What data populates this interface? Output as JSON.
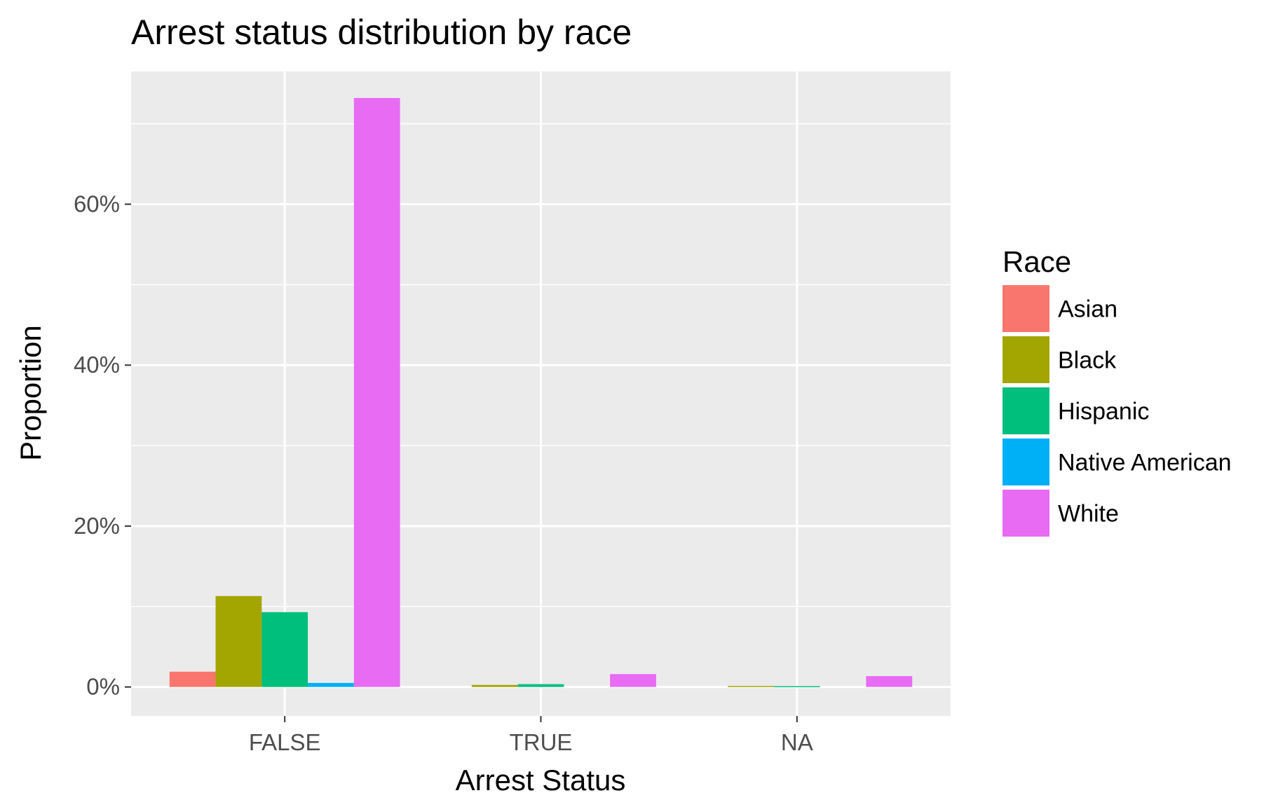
{
  "chart_data": {
    "type": "bar",
    "title": "Arrest status distribution by race",
    "xlabel": "Arrest Status",
    "ylabel": "Proportion",
    "categories": [
      "FALSE",
      "TRUE",
      "NA"
    ],
    "y_ticks": [
      0,
      20,
      40,
      60
    ],
    "y_tick_labels": [
      "0%",
      "20%",
      "40%",
      "60%"
    ],
    "y_unit": "%",
    "ylim": [
      -3.6,
      76.5
    ],
    "grid": true,
    "legend": {
      "title": "Race",
      "position": "right"
    },
    "series": [
      {
        "name": "Asian",
        "color": "#F8766D",
        "values": [
          1.9,
          0.0,
          0.0
        ]
      },
      {
        "name": "Black",
        "color": "#A3A500",
        "values": [
          11.3,
          0.25,
          0.12
        ]
      },
      {
        "name": "Hispanic",
        "color": "#00BF7D",
        "values": [
          9.3,
          0.35,
          0.1
        ]
      },
      {
        "name": "Native American",
        "color": "#00B0F6",
        "values": [
          0.5,
          0.0,
          0.0
        ]
      },
      {
        "name": "White",
        "color": "#E76BF3",
        "values": [
          73.2,
          1.6,
          1.35
        ]
      }
    ],
    "colors": {
      "panel_background": "#EBEBEB",
      "grid_line": "#FFFFFF",
      "tick_label": "#4D4D4D",
      "text": "#000000"
    }
  }
}
